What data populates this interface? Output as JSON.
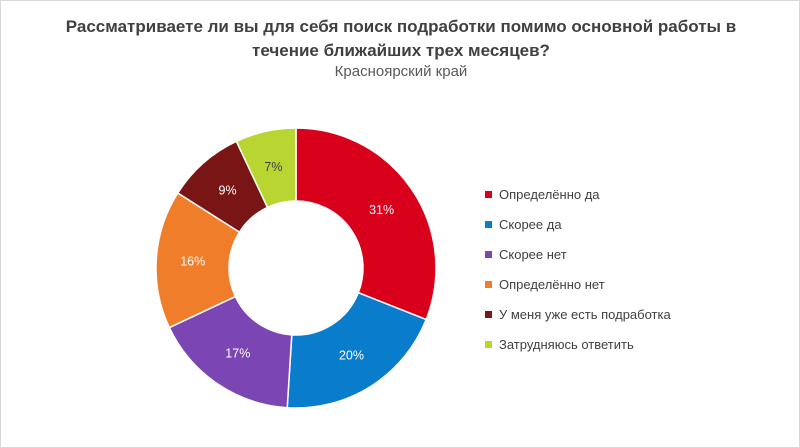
{
  "chart_data": {
    "type": "pie",
    "variant": "donut",
    "title": "Рассматриваете ли вы для себя поиск подработки помимо основной работы в течение ближайших трех месяцев?",
    "subtitle": "Красноярский край",
    "legend_position": "right",
    "value_suffix": "%",
    "slices": [
      {
        "label": "Определённо да",
        "value": 31,
        "color": "#d9001b"
      },
      {
        "label": "Скорее да",
        "value": 20,
        "color": "#0a7ccc"
      },
      {
        "label": "Скорее нет",
        "value": 17,
        "color": "#7b46b4"
      },
      {
        "label": "Определённо нет",
        "value": 16,
        "color": "#f07d2a"
      },
      {
        "label": "У меня уже есть подработка",
        "value": 9,
        "color": "#7a1515"
      },
      {
        "label": "Затрудняюсь ответить",
        "value": 7,
        "color": "#b8d532"
      }
    ]
  }
}
